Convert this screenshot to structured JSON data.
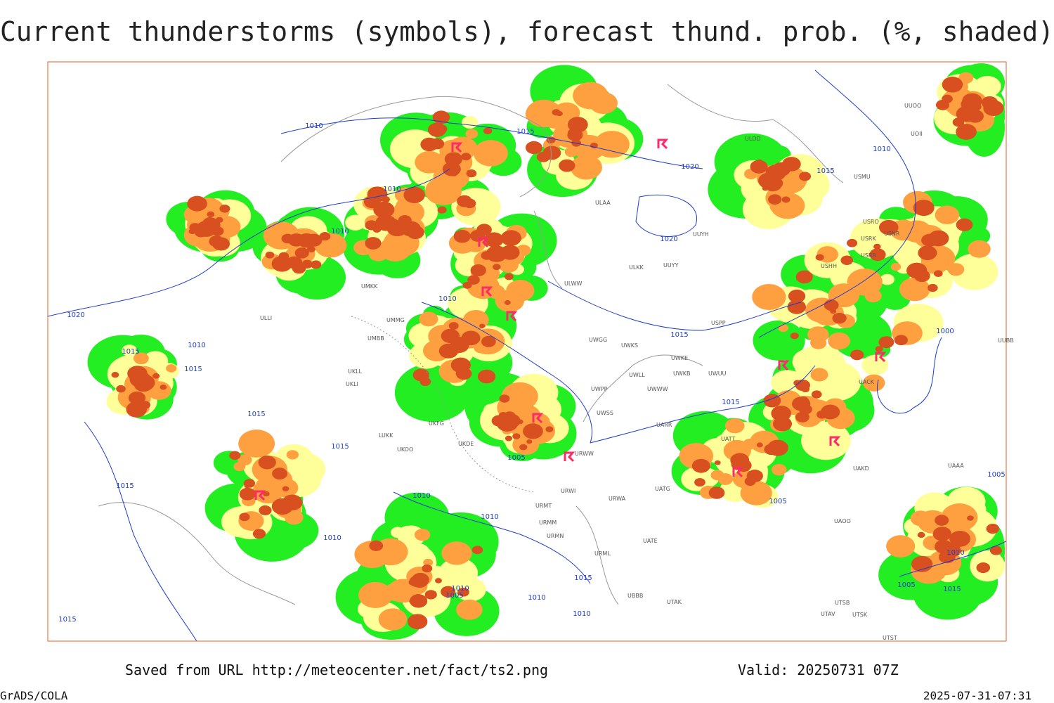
{
  "header": {
    "title": "Current thunderstorms (symbols), forecast thund. prob. (%, shaded)"
  },
  "footer": {
    "source": "Saved from URL http://meteocenter.net/fact/ts2.png",
    "valid": "Valid: 20250731 07Z",
    "software": "GrADS/COLA",
    "timestamp": "2025-07-31-07:31"
  },
  "map": {
    "isobar_labels": [
      "1010",
      "1015",
      "1020",
      "1010",
      "1010",
      "1020",
      "1015",
      "1020",
      "1015",
      "1015",
      "1010",
      "1015",
      "1015",
      "1015",
      "1010",
      "1015",
      "1005",
      "1010",
      "1010",
      "1010",
      "1005",
      "1010",
      "1010",
      "1015",
      "1010",
      "1015",
      "1005",
      "1000",
      "1005",
      "1010",
      "1015",
      "1005",
      "1015",
      "1010"
    ],
    "station_labels": [
      "ULDD",
      "USMU",
      "ULAA",
      "UUYH",
      "USRO",
      "USRK",
      "USNR",
      "USRR",
      "USHH",
      "ULKK",
      "UUYY",
      "ULWW",
      "UMKK",
      "UMMG",
      "UMBB",
      "UKLL",
      "UKLI",
      "UWGG",
      "UWKS",
      "UWKE",
      "UWLL",
      "UWKB",
      "UWUU",
      "UWPP",
      "UWWW",
      "UWSS",
      "UARR",
      "LUKK",
      "UKOO",
      "UKDE",
      "UKFG",
      "URWW",
      "URWI",
      "URWA",
      "UATG",
      "URMT",
      "URMM",
      "URMN",
      "UATE",
      "UATT",
      "URML",
      "UBBB",
      "UTAK",
      "UTSB",
      "UTAV",
      "UTSK",
      "UTST",
      "UAAA",
      "UAOO",
      "UACK",
      "UAKD",
      "UUOO",
      "UOII",
      "UUBB",
      "ULLI",
      "USPP"
    ]
  }
}
